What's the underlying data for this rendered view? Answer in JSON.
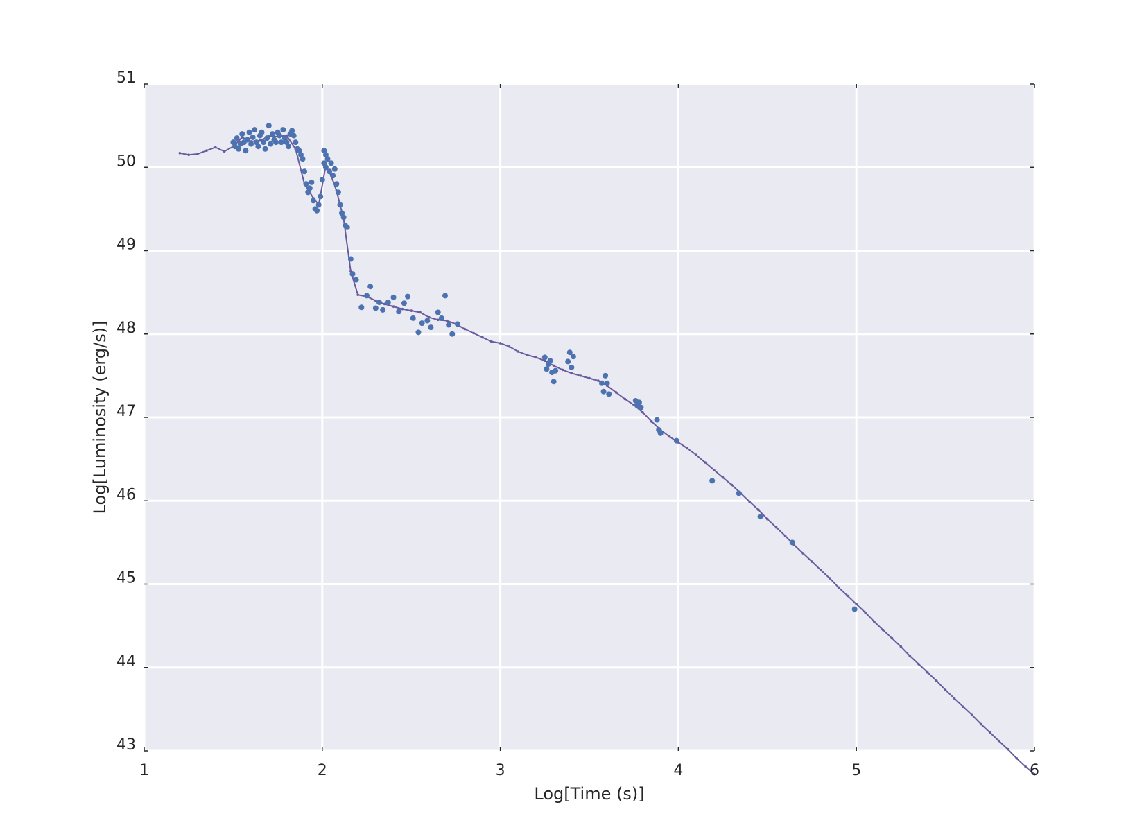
{
  "chart_data": {
    "type": "scatter",
    "title": "",
    "xlabel": "Log[Time (s)]",
    "ylabel": "Log[Luminosity (erg/s)]",
    "xlim": [
      1,
      6
    ],
    "ylim": [
      43,
      51
    ],
    "xticks": [
      "1",
      "2",
      "3",
      "4",
      "5",
      "6"
    ],
    "yticks": [
      "43",
      "44",
      "45",
      "46",
      "47",
      "48",
      "49",
      "50",
      "51"
    ],
    "grid": true,
    "legend": "none",
    "colors": {
      "background": "#eaeaf2",
      "grid": "#ffffff",
      "points": "#4c72b0",
      "line": "#6a5a9e"
    },
    "series": [
      {
        "kind": "scatter",
        "points": [
          [
            1.5,
            50.3
          ],
          [
            1.51,
            50.25
          ],
          [
            1.52,
            50.35
          ],
          [
            1.53,
            50.22
          ],
          [
            1.54,
            50.28
          ],
          [
            1.55,
            50.4
          ],
          [
            1.56,
            50.3
          ],
          [
            1.57,
            50.2
          ],
          [
            1.58,
            50.33
          ],
          [
            1.59,
            50.42
          ],
          [
            1.6,
            50.28
          ],
          [
            1.61,
            50.36
          ],
          [
            1.62,
            50.45
          ],
          [
            1.63,
            50.3
          ],
          [
            1.64,
            50.25
          ],
          [
            1.65,
            50.38
          ],
          [
            1.66,
            50.42
          ],
          [
            1.67,
            50.3
          ],
          [
            1.68,
            50.22
          ],
          [
            1.69,
            50.35
          ],
          [
            1.7,
            50.5
          ],
          [
            1.71,
            50.28
          ],
          [
            1.72,
            50.4
          ],
          [
            1.73,
            50.33
          ],
          [
            1.74,
            50.3
          ],
          [
            1.75,
            50.42
          ],
          [
            1.76,
            50.38
          ],
          [
            1.77,
            50.3
          ],
          [
            1.78,
            50.45
          ],
          [
            1.79,
            50.35
          ],
          [
            1.8,
            50.3
          ],
          [
            1.81,
            50.25
          ],
          [
            1.82,
            50.4
          ],
          [
            1.83,
            50.44
          ],
          [
            1.84,
            50.38
          ],
          [
            1.85,
            50.3
          ],
          [
            1.86,
            50.22
          ],
          [
            1.87,
            50.2
          ],
          [
            1.88,
            50.15
          ],
          [
            1.89,
            50.1
          ],
          [
            1.9,
            49.95
          ],
          [
            1.91,
            49.8
          ],
          [
            1.92,
            49.7
          ],
          [
            1.93,
            49.75
          ],
          [
            1.94,
            49.82
          ],
          [
            1.95,
            49.6
          ],
          [
            1.96,
            49.5
          ],
          [
            1.97,
            49.48
          ],
          [
            1.98,
            49.55
          ],
          [
            1.99,
            49.65
          ],
          [
            2.0,
            49.85
          ],
          [
            2.01,
            50.05
          ],
          [
            2.01,
            50.2
          ],
          [
            2.02,
            50.15
          ],
          [
            2.02,
            50.0
          ],
          [
            2.03,
            50.1
          ],
          [
            2.04,
            49.95
          ],
          [
            2.05,
            50.05
          ],
          [
            2.06,
            49.9
          ],
          [
            2.07,
            49.98
          ],
          [
            2.08,
            49.8
          ],
          [
            2.09,
            49.7
          ],
          [
            2.1,
            49.55
          ],
          [
            2.11,
            49.45
          ],
          [
            2.12,
            49.4
          ],
          [
            2.13,
            49.3
          ],
          [
            2.14,
            49.28
          ],
          [
            2.16,
            48.9
          ],
          [
            2.17,
            48.72
          ],
          [
            2.19,
            48.65
          ],
          [
            2.22,
            48.32
          ],
          [
            2.25,
            48.46
          ],
          [
            2.27,
            48.57
          ],
          [
            2.3,
            48.31
          ],
          [
            2.32,
            48.38
          ],
          [
            2.34,
            48.29
          ],
          [
            2.37,
            48.38
          ],
          [
            2.4,
            48.44
          ],
          [
            2.43,
            48.27
          ],
          [
            2.46,
            48.37
          ],
          [
            2.48,
            48.45
          ],
          [
            2.51,
            48.19
          ],
          [
            2.54,
            48.02
          ],
          [
            2.56,
            48.13
          ],
          [
            2.59,
            48.16
          ],
          [
            2.61,
            48.08
          ],
          [
            2.65,
            48.26
          ],
          [
            2.67,
            48.19
          ],
          [
            2.69,
            48.46
          ],
          [
            2.71,
            48.11
          ],
          [
            2.73,
            48.0
          ],
          [
            2.76,
            48.12
          ],
          [
            3.25,
            47.72
          ],
          [
            3.26,
            47.58
          ],
          [
            3.27,
            47.64
          ],
          [
            3.28,
            47.68
          ],
          [
            3.29,
            47.54
          ],
          [
            3.3,
            47.43
          ],
          [
            3.31,
            47.56
          ],
          [
            3.38,
            47.67
          ],
          [
            3.39,
            47.78
          ],
          [
            3.4,
            47.6
          ],
          [
            3.41,
            47.73
          ],
          [
            3.57,
            47.41
          ],
          [
            3.58,
            47.31
          ],
          [
            3.59,
            47.5
          ],
          [
            3.6,
            47.41
          ],
          [
            3.61,
            47.28
          ],
          [
            3.76,
            47.2
          ],
          [
            3.77,
            47.14
          ],
          [
            3.78,
            47.18
          ],
          [
            3.79,
            47.12
          ],
          [
            3.88,
            46.97
          ],
          [
            3.89,
            46.85
          ],
          [
            3.9,
            46.81
          ],
          [
            3.99,
            46.72
          ],
          [
            4.19,
            46.24
          ],
          [
            4.34,
            46.09
          ],
          [
            4.46,
            45.81
          ],
          [
            4.64,
            45.5
          ],
          [
            4.99,
            44.7
          ]
        ]
      },
      {
        "kind": "line",
        "points": [
          [
            1.2,
            50.17
          ],
          [
            1.25,
            50.15
          ],
          [
            1.3,
            50.16
          ],
          [
            1.35,
            50.2
          ],
          [
            1.4,
            50.24
          ],
          [
            1.45,
            50.19
          ],
          [
            1.5,
            50.25
          ],
          [
            1.55,
            50.36
          ],
          [
            1.6,
            50.31
          ],
          [
            1.65,
            50.32
          ],
          [
            1.7,
            50.37
          ],
          [
            1.75,
            50.37
          ],
          [
            1.8,
            50.38
          ],
          [
            1.85,
            50.22
          ],
          [
            1.9,
            49.8
          ],
          [
            1.95,
            49.63
          ],
          [
            1.98,
            49.55
          ],
          [
            2.02,
            50.02
          ],
          [
            2.05,
            49.9
          ],
          [
            2.08,
            49.72
          ],
          [
            2.12,
            49.38
          ],
          [
            2.16,
            48.75
          ],
          [
            2.2,
            48.47
          ],
          [
            2.25,
            48.45
          ],
          [
            2.3,
            48.4
          ],
          [
            2.35,
            48.36
          ],
          [
            2.4,
            48.33
          ],
          [
            2.45,
            48.3
          ],
          [
            2.5,
            48.28
          ],
          [
            2.55,
            48.26
          ],
          [
            2.6,
            48.2
          ],
          [
            2.65,
            48.17
          ],
          [
            2.7,
            48.16
          ],
          [
            2.75,
            48.12
          ],
          [
            2.8,
            48.06
          ],
          [
            2.85,
            48.01
          ],
          [
            2.9,
            47.96
          ],
          [
            2.95,
            47.91
          ],
          [
            3.0,
            47.89
          ],
          [
            3.05,
            47.85
          ],
          [
            3.1,
            47.79
          ],
          [
            3.15,
            47.75
          ],
          [
            3.2,
            47.72
          ],
          [
            3.25,
            47.68
          ],
          [
            3.3,
            47.62
          ],
          [
            3.35,
            47.57
          ],
          [
            3.4,
            47.53
          ],
          [
            3.45,
            47.5
          ],
          [
            3.5,
            47.47
          ],
          [
            3.55,
            47.44
          ],
          [
            3.6,
            47.38
          ],
          [
            3.65,
            47.3
          ],
          [
            3.7,
            47.22
          ],
          [
            3.75,
            47.15
          ],
          [
            3.8,
            47.06
          ],
          [
            3.85,
            46.95
          ],
          [
            3.9,
            46.85
          ],
          [
            3.95,
            46.77
          ],
          [
            4.0,
            46.7
          ],
          [
            4.05,
            46.63
          ],
          [
            4.1,
            46.55
          ],
          [
            4.15,
            46.46
          ],
          [
            4.2,
            46.37
          ],
          [
            4.25,
            46.28
          ],
          [
            4.3,
            46.19
          ],
          [
            4.35,
            46.09
          ],
          [
            4.4,
            45.99
          ],
          [
            4.45,
            45.89
          ],
          [
            4.5,
            45.78
          ],
          [
            4.55,
            45.68
          ],
          [
            4.6,
            45.58
          ],
          [
            4.65,
            45.47
          ],
          [
            4.7,
            45.37
          ],
          [
            4.75,
            45.27
          ],
          [
            4.8,
            45.17
          ],
          [
            4.85,
            45.07
          ],
          [
            4.9,
            44.96
          ],
          [
            4.95,
            44.86
          ],
          [
            5.0,
            44.76
          ],
          [
            5.05,
            44.66
          ],
          [
            5.1,
            44.55
          ],
          [
            5.15,
            44.45
          ],
          [
            5.2,
            44.35
          ],
          [
            5.25,
            44.25
          ],
          [
            5.3,
            44.14
          ],
          [
            5.35,
            44.04
          ],
          [
            5.4,
            43.94
          ],
          [
            5.45,
            43.84
          ],
          [
            5.5,
            43.73
          ],
          [
            5.55,
            43.63
          ],
          [
            5.6,
            43.53
          ],
          [
            5.65,
            43.43
          ],
          [
            5.7,
            43.32
          ],
          [
            5.75,
            43.22
          ],
          [
            5.8,
            43.12
          ],
          [
            5.85,
            43.02
          ],
          [
            5.9,
            42.91
          ],
          [
            5.95,
            42.81
          ],
          [
            6.0,
            42.72
          ]
        ]
      }
    ]
  }
}
